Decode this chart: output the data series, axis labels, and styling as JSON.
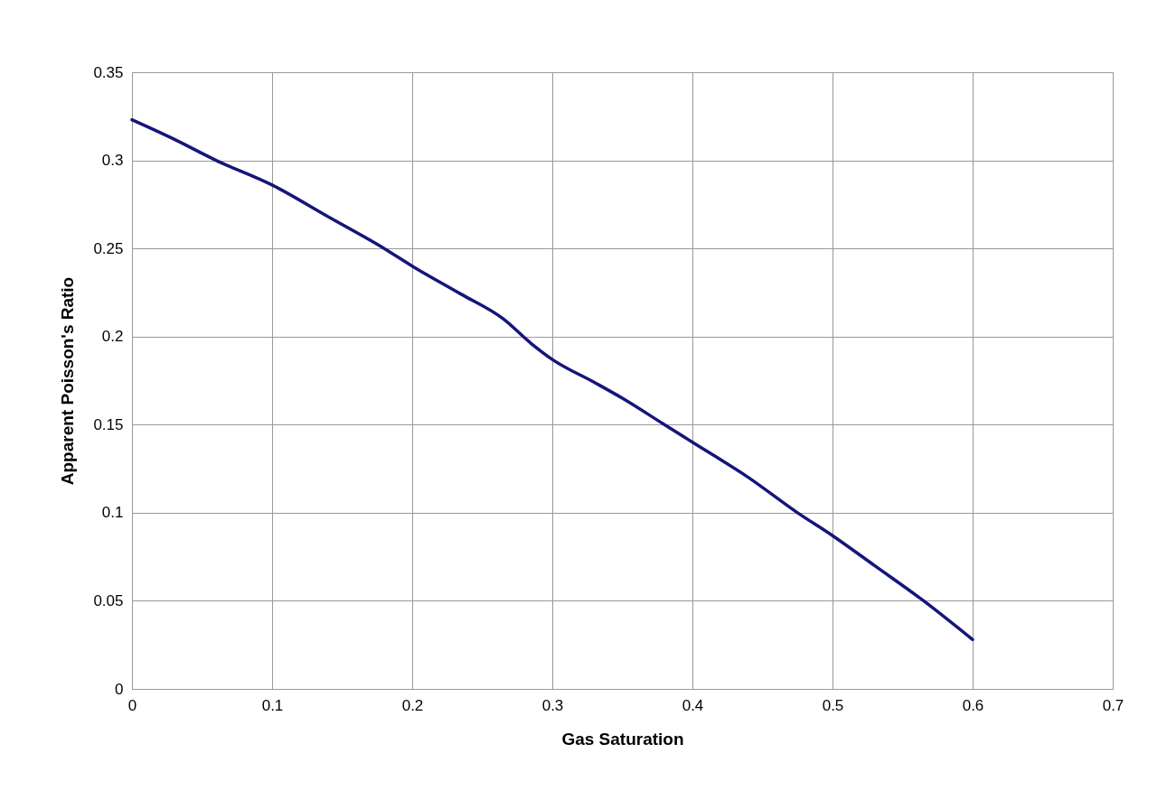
{
  "chart_data": {
    "type": "line",
    "xlabel": "Gas Saturation",
    "ylabel": "Apparent Poisson's Ratio",
    "x": [
      0,
      0.03,
      0.06,
      0.1,
      0.14,
      0.18,
      0.2,
      0.235,
      0.265,
      0.285,
      0.3,
      0.33,
      0.35,
      0.38,
      0.4,
      0.44,
      0.475,
      0.5,
      0.53,
      0.565,
      0.6
    ],
    "series": [
      {
        "color": "#15157a",
        "values": [
          0.323,
          0.312,
          0.3,
          0.286,
          0.268,
          0.25,
          0.24,
          0.224,
          0.21,
          0.196,
          0.187,
          0.174,
          0.165,
          0.15,
          0.14,
          0.12,
          0.1,
          0.087,
          0.07,
          0.05,
          0.028
        ]
      }
    ],
    "xlim": [
      0,
      0.7
    ],
    "xticks": [
      0,
      0.1,
      0.2,
      0.3,
      0.4,
      0.5,
      0.6,
      0.7
    ],
    "ylim": [
      0,
      0.35
    ],
    "yticks": [
      0,
      0.05,
      0.1,
      0.15,
      0.2,
      0.25,
      0.3,
      0.35
    ],
    "grid": true,
    "marker": "none",
    "line_style": "solid"
  }
}
